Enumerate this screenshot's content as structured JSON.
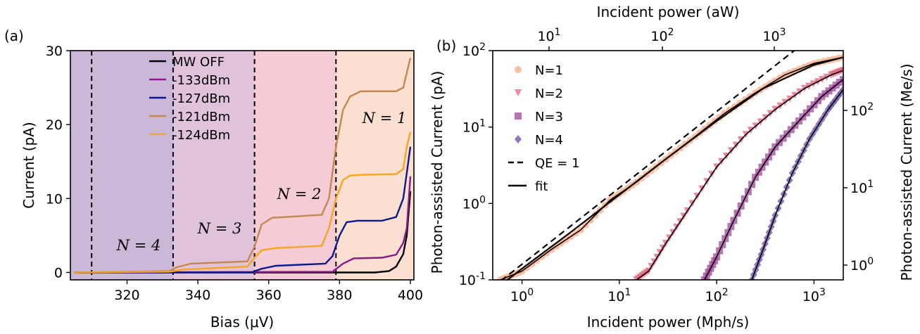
{
  "chart_data": [
    {
      "panel_label": "(a)",
      "type": "line",
      "xlabel": "Bias (μV)",
      "ylabel": "Current (pA)",
      "xlim": [
        304,
        401
      ],
      "ylim": [
        -1,
        30
      ],
      "xticks": [
        320,
        340,
        360,
        380,
        400
      ],
      "yticks": [
        0,
        10,
        20,
        30
      ],
      "grid": false,
      "legend_position": "top-center",
      "regions": [
        {
          "label": "N = 4",
          "x": [
            304,
            333
          ],
          "color": "#cbb8d9"
        },
        {
          "label": "N = 3",
          "x": [
            333,
            356
          ],
          "color": "#e0c3db"
        },
        {
          "label": "N = 2",
          "x": [
            356,
            379
          ],
          "color": "#f5ccd5"
        },
        {
          "label": "N = 1",
          "x": [
            379,
            401
          ],
          "color": "#fbdfd0"
        }
      ],
      "vlines": [
        310,
        333,
        356,
        379
      ],
      "series": [
        {
          "name": "MW OFF",
          "color": "#000000",
          "x": [
            305,
            390,
            394,
            396,
            398,
            399,
            400
          ],
          "y": [
            0,
            0,
            0.2,
            0.8,
            2.5,
            5,
            11
          ]
        },
        {
          "name": "-133dBm",
          "color": "#8b1a8b",
          "x": [
            305,
            378,
            381,
            384,
            392,
            396,
            398,
            399,
            400
          ],
          "y": [
            0,
            0.1,
            1.2,
            1.9,
            2,
            2.4,
            4,
            6,
            13
          ]
        },
        {
          "name": "-127dBm",
          "color": "#0d1a8c",
          "x": [
            305,
            355,
            358,
            362,
            376,
            378,
            380,
            382,
            385,
            392,
            396,
            398,
            400
          ],
          "y": [
            0,
            0,
            0.5,
            0.9,
            1.2,
            2.2,
            5,
            6.8,
            7,
            7,
            7.5,
            10,
            17
          ]
        },
        {
          "name": "-121dBm",
          "color": "#c4884f",
          "x": [
            305,
            332,
            334,
            338,
            354,
            356,
            358,
            361,
            365,
            375,
            377,
            379,
            381,
            383,
            386,
            396,
            398,
            399,
            400
          ],
          "y": [
            0,
            0.2,
            0.7,
            1.2,
            1.5,
            3.5,
            6.5,
            7.4,
            7.5,
            7.8,
            10,
            17,
            22,
            23.8,
            24.5,
            24.5,
            25,
            27,
            29
          ]
        },
        {
          "name": "-124dBm",
          "color": "#f7a51e",
          "x": [
            305,
            332,
            336,
            354,
            356,
            358,
            362,
            375,
            377,
            379,
            381,
            383,
            386,
            396,
            398,
            399,
            400
          ],
          "y": [
            0,
            0.1,
            0.4,
            0.8,
            2,
            3,
            3.3,
            3.6,
            6,
            10,
            12.5,
            13.1,
            13.2,
            13.3,
            14,
            17,
            19
          ]
        }
      ]
    },
    {
      "panel_label": "(b)",
      "type": "scatter",
      "xlabel": "Incident power (Mph/s)",
      "ylabel": "Photon-assisted Current (pA)",
      "x2label": "Incident power (aW)",
      "y2label": "Photon-assisted Current (Me/s)",
      "xscale": "log",
      "yscale": "log",
      "xlim": [
        0.5,
        2000
      ],
      "ylim": [
        0.1,
        100
      ],
      "xticks": [
        "10^0",
        "10^1",
        "10^2",
        "10^3"
      ],
      "yticks": [
        "10^-1",
        "10^0",
        "10^1",
        "10^2"
      ],
      "x2ticks": [
        "10^1",
        "10^2",
        "10^3"
      ],
      "y2ticks": [
        "10^0",
        "10^1",
        "10^2"
      ],
      "grid": false,
      "legend_position": "top-left",
      "series": [
        {
          "name": "N=1",
          "marker": "circle",
          "color": "#f9a986",
          "x": [
            0.6,
            1,
            2,
            4,
            8,
            15,
            30,
            60,
            120,
            250,
            500,
            1000,
            2000
          ],
          "y": [
            0.1,
            0.13,
            0.25,
            0.45,
            1.1,
            1.9,
            3.8,
            7.5,
            15,
            28,
            48,
            68,
            82
          ]
        },
        {
          "name": "N=2",
          "marker": "triangle-down",
          "color": "#e0607a",
          "x": [
            15,
            20,
            30,
            50,
            100,
            200,
            400,
            800,
            1500,
            2000
          ],
          "y": [
            0.1,
            0.13,
            0.3,
            0.8,
            3,
            8,
            17,
            32,
            48,
            55
          ]
        },
        {
          "name": "N=3",
          "marker": "square",
          "color": "#a0479b",
          "x": [
            75,
            100,
            150,
            250,
            400,
            700,
            1200,
            2000
          ],
          "y": [
            0.1,
            0.2,
            0.6,
            2.2,
            5.5,
            12,
            25,
            42
          ]
        },
        {
          "name": "N=4",
          "marker": "diamond",
          "color": "#6a4aa5",
          "x": [
            230,
            300,
            400,
            600,
            900,
            1400,
            2000
          ],
          "y": [
            0.1,
            0.25,
            0.7,
            2.5,
            7,
            17,
            31
          ]
        },
        {
          "name": "QE = 1",
          "line": "dashed",
          "color": "#000000",
          "x": [
            0.5,
            700
          ],
          "y": [
            0.08,
            112
          ]
        },
        {
          "name": "fit",
          "line": "solid",
          "color": "#000000",
          "x": [
            0.6,
            1,
            3,
            10,
            30,
            100,
            300,
            1000,
            2000
          ],
          "y": [
            0.085,
            0.14,
            0.4,
            1.3,
            3.8,
            12,
            32,
            65,
            82
          ]
        }
      ]
    }
  ]
}
